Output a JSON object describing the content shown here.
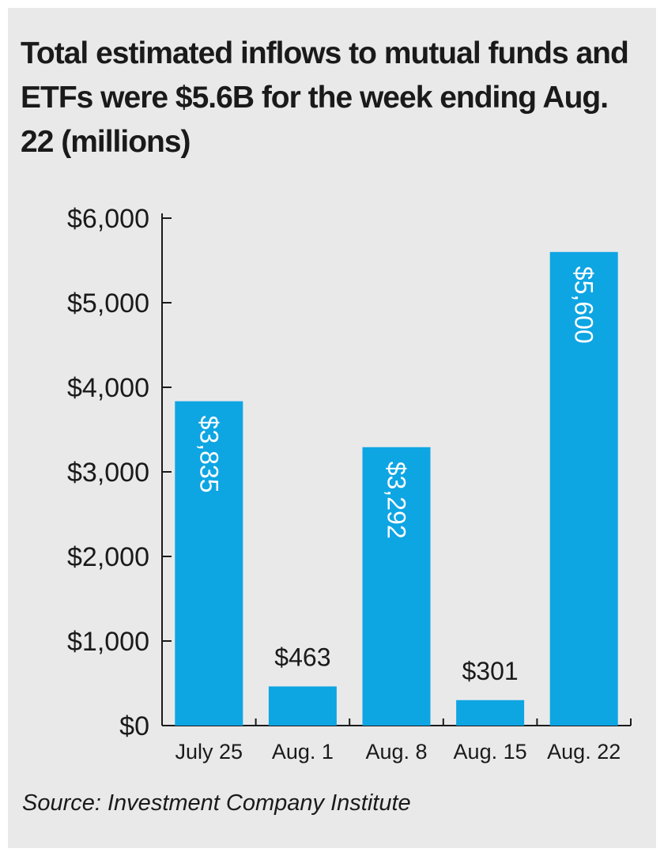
{
  "chart_data": {
    "type": "bar",
    "title": "Total estimated inflows to mutual funds and ETFs were $5.6B for the week ending Aug. 22 (millions)",
    "categories": [
      "July 25",
      "Aug. 1",
      "Aug. 8",
      "Aug. 15",
      "Aug. 22"
    ],
    "values": [
      3835,
      463,
      3292,
      301,
      5600
    ],
    "value_labels": [
      "$3,835",
      "$463",
      "$3,292",
      "$301",
      "$5,600"
    ],
    "value_label_placement": [
      "inside-rotated",
      "above",
      "inside-rotated",
      "above",
      "inside-rotated"
    ],
    "ylim": [
      0,
      6000
    ],
    "yticks": [
      0,
      1000,
      2000,
      3000,
      4000,
      5000,
      6000
    ],
    "ytick_labels": [
      "$0",
      "$1,000",
      "$2,000",
      "$3,000",
      "$4,000",
      "$5,000",
      "$6,000"
    ],
    "xlabel": "",
    "ylabel": "",
    "grid": false,
    "bar_color": "#0ea5e3",
    "label_color_inside": "#ffffff",
    "label_color_outside": "#1a1a1a"
  },
  "source": "Source: Investment Company Institute"
}
